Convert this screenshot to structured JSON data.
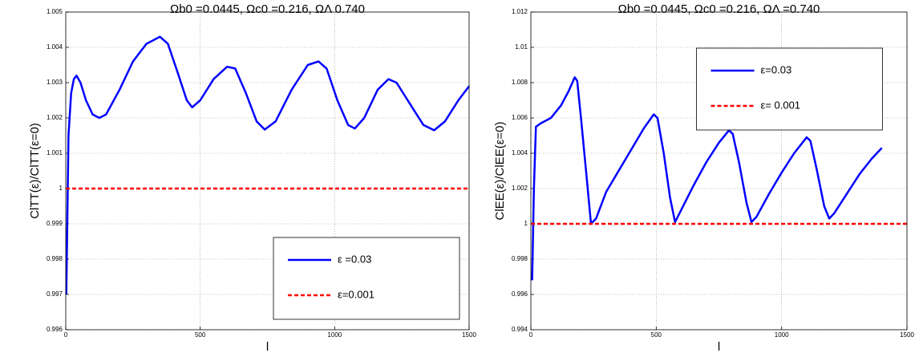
{
  "chart_data": [
    {
      "type": "line",
      "title": "Ωb0 =0.0445, Ωc0 =0.216, ΩΛ 0.740",
      "x_label": "l",
      "y_label": "ClTT(ε)/ClTT(ε=0)",
      "xlim": [
        0,
        1500
      ],
      "xticks": [
        0,
        500,
        1000,
        1500
      ],
      "ylim": [
        0.996,
        1.005
      ],
      "yticks": [
        0.996,
        0.997,
        0.998,
        0.999,
        1,
        1.001,
        1.002,
        1.003,
        1.004,
        1.005
      ],
      "grid": true,
      "legend": "lower right",
      "series": [
        {
          "name": "ε =0.03",
          "color": "#0000ff",
          "dash": false,
          "x": [
            2,
            10,
            20,
            30,
            40,
            55,
            75,
            100,
            125,
            150,
            200,
            250,
            300,
            350,
            380,
            420,
            450,
            470,
            500,
            550,
            600,
            630,
            670,
            710,
            740,
            780,
            840,
            900,
            940,
            970,
            1010,
            1050,
            1075,
            1110,
            1160,
            1200,
            1230,
            1280,
            1330,
            1370,
            1410,
            1460,
            1500
          ],
          "values": [
            0.997,
            1.0015,
            1.0027,
            1.0031,
            1.0032,
            1.003,
            1.0025,
            1.0021,
            1.002,
            1.0021,
            1.0028,
            1.0036,
            1.0041,
            1.0043,
            1.0041,
            1.0032,
            1.0025,
            1.0023,
            1.0025,
            1.0031,
            1.00345,
            1.0034,
            1.0027,
            1.0019,
            1.00167,
            1.0019,
            1.0028,
            1.0035,
            1.0036,
            1.0034,
            1.0025,
            1.0018,
            1.0017,
            1.002,
            1.0028,
            1.0031,
            1.003,
            1.0024,
            1.0018,
            1.00165,
            1.0019,
            1.0025,
            1.0029
          ]
        },
        {
          "name": "ε=0.001",
          "color": "#ff0000",
          "dash": true,
          "x": [
            0,
            1500
          ],
          "values": [
            1,
            1
          ]
        }
      ]
    },
    {
      "type": "line",
      "title": "Ωb0 =0.0445, Ωc0 =0.216, ΩΛ =0.740",
      "x_label": "l",
      "y_label": "ClEE(ε)/ClEE(ε=0)",
      "xlim": [
        0,
        1500
      ],
      "xticks": [
        0,
        500,
        1000,
        1500
      ],
      "ylim": [
        0.994,
        1.012
      ],
      "yticks": [
        0.994,
        0.996,
        0.998,
        1,
        1.002,
        1.004,
        1.006,
        1.008,
        1.01,
        1.012
      ],
      "grid": true,
      "legend": "upper center",
      "series": [
        {
          "name": "ε=0.03",
          "color": "#0000ff",
          "dash": false,
          "x": [
            5,
            12,
            20,
            40,
            80,
            120,
            150,
            175,
            185,
            200,
            220,
            240,
            260,
            300,
            350,
            400,
            450,
            490,
            505,
            530,
            555,
            575,
            600,
            650,
            700,
            750,
            790,
            805,
            830,
            860,
            880,
            900,
            950,
            1000,
            1050,
            1100,
            1115,
            1140,
            1170,
            1190,
            1210,
            1260,
            1310,
            1360,
            1400
          ],
          "values": [
            0.9968,
            1.002,
            1.0055,
            1.0057,
            1.006,
            1.0067,
            1.0075,
            1.0083,
            1.0081,
            1.006,
            1.003,
            1.0,
            1.0003,
            1.0018,
            1.003,
            1.0042,
            1.0054,
            1.0062,
            1.006,
            1.004,
            1.0015,
            1.0001,
            1.0008,
            1.0022,
            1.0035,
            1.0046,
            1.0053,
            1.0051,
            1.0035,
            1.0012,
            1.0001,
            1.0004,
            1.0017,
            1.0029,
            1.004,
            1.0049,
            1.0047,
            1.0031,
            1.001,
            1.0003,
            1.0006,
            1.0017,
            1.0028,
            1.0037,
            1.0043
          ]
        },
        {
          "name": "ε= 0.001",
          "color": "#ff0000",
          "dash": true,
          "x": [
            0,
            1500
          ],
          "values": [
            1,
            1
          ]
        }
      ]
    }
  ]
}
